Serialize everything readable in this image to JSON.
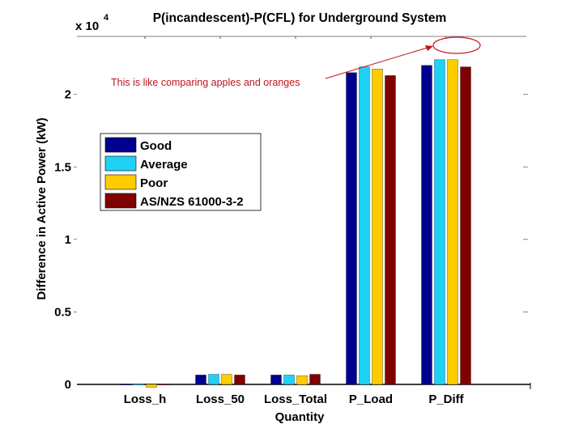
{
  "chart_data": {
    "type": "bar",
    "title": "P(incandescent)-P(CFL) for Underground System",
    "xlabel": "Quantity",
    "ylabel": "Difference in Active Power (kW)",
    "y_exponent_label": "x 10",
    "y_exponent_power": "4",
    "ylim": [
      0,
      24000
    ],
    "yticks": [
      {
        "value": 0,
        "label": "0"
      },
      {
        "value": 5000,
        "label": "0.5"
      },
      {
        "value": 10000,
        "label": "1"
      },
      {
        "value": 15000,
        "label": "1.5"
      },
      {
        "value": 20000,
        "label": "2"
      }
    ],
    "categories": [
      "Loss_h",
      "Loss_50",
      "Loss_Total",
      "P_Load",
      "P_Diff"
    ],
    "series": [
      {
        "name": "Good",
        "color": "#00008f",
        "values": [
          20,
          650,
          650,
          21500,
          22000
        ]
      },
      {
        "name": "Average",
        "color": "#1fd2f5",
        "values": [
          20,
          700,
          650,
          21900,
          22400
        ]
      },
      {
        "name": "Poor",
        "color": "#ffcc00",
        "values": [
          -200,
          700,
          600,
          21750,
          22400
        ]
      },
      {
        "name": "AS/NZS 61000-3-2",
        "color": "#800000",
        "values": [
          20,
          650,
          700,
          21300,
          21900
        ]
      }
    ],
    "legend_position": "upper-left",
    "annotation": {
      "text": "This is like comparing apples and oranges",
      "color": "#c0141e",
      "target_category": "P_Diff"
    }
  }
}
